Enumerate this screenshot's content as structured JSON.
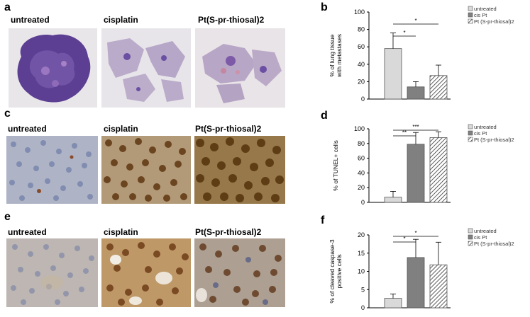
{
  "panels": {
    "a": {
      "letter": "a",
      "labels": [
        "untreated",
        "cisplatin",
        "Pt(S-pr-thiosal)2"
      ]
    },
    "c": {
      "letter": "c",
      "labels": [
        "untreated",
        "cisplatin",
        "Pt(S-pr-thiosal)2"
      ]
    },
    "e": {
      "letter": "e",
      "labels": [
        "untreated",
        "cisplatin",
        "Pt(S-pr-thiosal)2"
      ]
    },
    "b": {
      "letter": "b"
    },
    "d": {
      "letter": "d"
    },
    "f": {
      "letter": "f"
    }
  },
  "colors": {
    "untreated": "#d9d9d9",
    "cisplatin": "#808080",
    "thiosal": "#ffffff",
    "he_stain": "#6a4fa3",
    "brown_stain": "#8a5a2b",
    "blue_stain": "#5b6f9a"
  },
  "chart_data": [
    {
      "type": "bar",
      "panel": "b",
      "categories": [
        "untreated",
        "cis Pt",
        "Pt (S-pr-thiosal)2"
      ],
      "values": [
        58,
        14,
        27
      ],
      "errors": [
        18,
        6,
        12
      ],
      "xlabel": "",
      "ylabel": "% of lung tissue with metastases",
      "ylim": [
        0,
        100
      ],
      "yticks": [
        0,
        20,
        40,
        60,
        80,
        100
      ],
      "significance": [
        {
          "from": 0,
          "to": 1,
          "label": "*"
        },
        {
          "from": 0,
          "to": 2,
          "label": "*"
        }
      ],
      "legend": [
        "untreated",
        "cis Pt",
        "Pt (S-pr-thiosal)2"
      ]
    },
    {
      "type": "bar",
      "panel": "d",
      "categories": [
        "untreated",
        "cis Pt",
        "Pt (S-pr-thiosal)2"
      ],
      "values": [
        7,
        79,
        88
      ],
      "errors": [
        8,
        16,
        8
      ],
      "xlabel": "",
      "ylabel": "% of TUNEL+ cells",
      "ylim": [
        0,
        100
      ],
      "yticks": [
        0,
        20,
        40,
        60,
        80,
        100
      ],
      "significance": [
        {
          "from": 0,
          "to": 1,
          "label": "**"
        },
        {
          "from": 0,
          "to": 2,
          "label": "***"
        }
      ],
      "legend": [
        "untreated",
        "cis Pt",
        "Pt (S-pr-thiosal)2"
      ]
    },
    {
      "type": "bar",
      "panel": "f",
      "categories": [
        "untreated",
        "cis Pt",
        "Pt (S-pr-thiosal)2"
      ],
      "values": [
        2.6,
        13.8,
        11.8
      ],
      "errors": [
        1.2,
        5,
        6.2
      ],
      "xlabel": "",
      "ylabel": "% of cleaved caspase-3 positive cells",
      "ylim": [
        0,
        20
      ],
      "yticks": [
        0,
        5,
        10,
        15,
        20
      ],
      "significance": [
        {
          "from": 0,
          "to": 1,
          "label": "*"
        },
        {
          "from": 0,
          "to": 2,
          "label": "*"
        }
      ],
      "legend": [
        "untreated",
        "cis Pt",
        "Pt (S-pr-thiosal)2"
      ]
    }
  ]
}
